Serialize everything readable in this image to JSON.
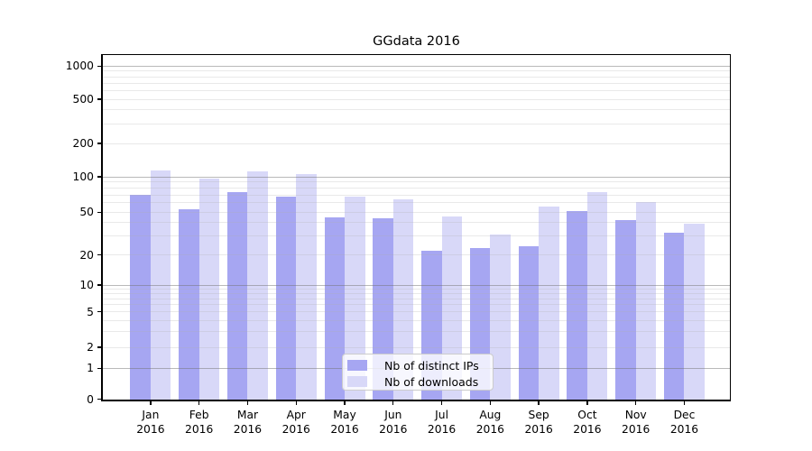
{
  "chart_data": {
    "type": "bar",
    "title": "GGdata 2016",
    "categories": [
      "Jan 2016",
      "Feb 2016",
      "Mar 2016",
      "Apr 2016",
      "May 2016",
      "Jun 2016",
      "Jul 2016",
      "Aug 2016",
      "Sep 2016",
      "Oct 2016",
      "Nov 2016",
      "Dec 2016"
    ],
    "series": [
      {
        "name": "Nb of distinct IPs",
        "color": "#a6a6f2",
        "values": [
          70,
          53,
          74,
          68,
          45,
          44,
          22,
          23,
          24,
          51,
          42,
          32
        ]
      },
      {
        "name": "Nb of downloads",
        "color": "#d8d8f8",
        "values": [
          115,
          96,
          112,
          106,
          68,
          64,
          46,
          31,
          56,
          74,
          61,
          39
        ]
      }
    ],
    "y_axis": {
      "scale": "symlog",
      "ticks": [
        0,
        1,
        2,
        5,
        10,
        20,
        50,
        100,
        200,
        500,
        1000
      ],
      "minor_gridlines": [
        2,
        3,
        4,
        5,
        6,
        7,
        8,
        9,
        20,
        30,
        40,
        50,
        60,
        70,
        80,
        90,
        200,
        300,
        400,
        500,
        600,
        700,
        800,
        900
      ],
      "major_gridlines": [
        1,
        10,
        100,
        1000
      ]
    },
    "legend": {
      "entries": [
        "Nb of distinct IPs",
        "Nb of downloads"
      ],
      "position": "inside-bottom-center"
    },
    "colors": {
      "bar_dark": "#a6a6f2",
      "bar_light": "#d8d8f8",
      "grid_major": "#b0b0b0",
      "grid_minor": "#d9d9d9",
      "axis": "#000000",
      "background": "#ffffff"
    }
  }
}
